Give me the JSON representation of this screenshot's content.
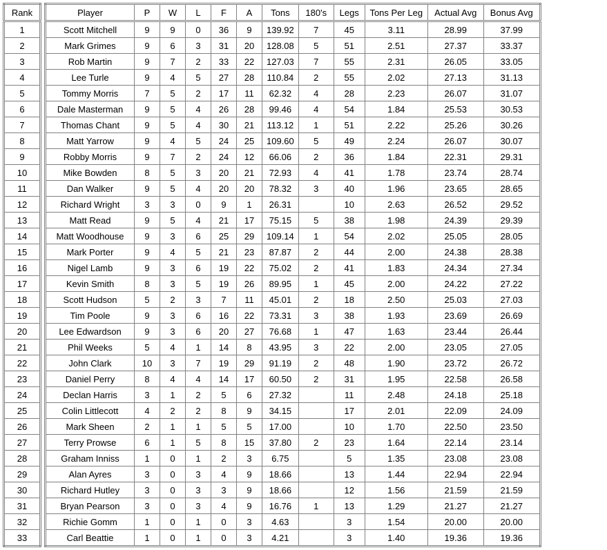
{
  "rank_header": "Rank",
  "headers": [
    "Player",
    "P",
    "W",
    "L",
    "F",
    "A",
    "Tons",
    "180's",
    "Legs",
    "Tons Per Leg",
    "Actual Avg",
    "Bonus Avg"
  ],
  "col_classes": [
    "player-col",
    "small-col",
    "small-col",
    "small-col",
    "small-col",
    "small-col",
    "med-col",
    "med-col",
    "legs-col",
    "tpl-col",
    "avg-col",
    "avg-col"
  ],
  "rows": [
    {
      "rank": "1",
      "cells": [
        "Scott Mitchell",
        "9",
        "9",
        "0",
        "36",
        "9",
        "139.92",
        "7",
        "45",
        "3.11",
        "28.99",
        "37.99"
      ]
    },
    {
      "rank": "2",
      "cells": [
        "Mark Grimes",
        "9",
        "6",
        "3",
        "31",
        "20",
        "128.08",
        "5",
        "51",
        "2.51",
        "27.37",
        "33.37"
      ]
    },
    {
      "rank": "3",
      "cells": [
        "Rob Martin",
        "9",
        "7",
        "2",
        "33",
        "22",
        "127.03",
        "7",
        "55",
        "2.31",
        "26.05",
        "33.05"
      ]
    },
    {
      "rank": "4",
      "cells": [
        "Lee Turle",
        "9",
        "4",
        "5",
        "27",
        "28",
        "110.84",
        "2",
        "55",
        "2.02",
        "27.13",
        "31.13"
      ]
    },
    {
      "rank": "5",
      "cells": [
        "Tommy Morris",
        "7",
        "5",
        "2",
        "17",
        "11",
        "62.32",
        "4",
        "28",
        "2.23",
        "26.07",
        "31.07"
      ]
    },
    {
      "rank": "6",
      "cells": [
        "Dale Masterman",
        "9",
        "5",
        "4",
        "26",
        "28",
        "99.46",
        "4",
        "54",
        "1.84",
        "25.53",
        "30.53"
      ]
    },
    {
      "rank": "7",
      "cells": [
        "Thomas Chant",
        "9",
        "5",
        "4",
        "30",
        "21",
        "113.12",
        "1",
        "51",
        "2.22",
        "25.26",
        "30.26"
      ]
    },
    {
      "rank": "8",
      "cells": [
        "Matt Yarrow",
        "9",
        "4",
        "5",
        "24",
        "25",
        "109.60",
        "5",
        "49",
        "2.24",
        "26.07",
        "30.07"
      ]
    },
    {
      "rank": "9",
      "cells": [
        "Robby Morris",
        "9",
        "7",
        "2",
        "24",
        "12",
        "66.06",
        "2",
        "36",
        "1.84",
        "22.31",
        "29.31"
      ]
    },
    {
      "rank": "10",
      "cells": [
        "Mike Bowden",
        "8",
        "5",
        "3",
        "20",
        "21",
        "72.93",
        "4",
        "41",
        "1.78",
        "23.74",
        "28.74"
      ]
    },
    {
      "rank": "11",
      "cells": [
        "Dan Walker",
        "9",
        "5",
        "4",
        "20",
        "20",
        "78.32",
        "3",
        "40",
        "1.96",
        "23.65",
        "28.65"
      ]
    },
    {
      "rank": "12",
      "cells": [
        "Richard Wright",
        "3",
        "3",
        "0",
        "9",
        "1",
        "26.31",
        "",
        "10",
        "2.63",
        "26.52",
        "29.52"
      ]
    },
    {
      "rank": "13",
      "cells": [
        "Matt Read",
        "9",
        "5",
        "4",
        "21",
        "17",
        "75.15",
        "5",
        "38",
        "1.98",
        "24.39",
        "29.39"
      ]
    },
    {
      "rank": "14",
      "cells": [
        "Matt Woodhouse",
        "9",
        "3",
        "6",
        "25",
        "29",
        "109.14",
        "1",
        "54",
        "2.02",
        "25.05",
        "28.05"
      ]
    },
    {
      "rank": "15",
      "cells": [
        "Mark Porter",
        "9",
        "4",
        "5",
        "21",
        "23",
        "87.87",
        "2",
        "44",
        "2.00",
        "24.38",
        "28.38"
      ]
    },
    {
      "rank": "16",
      "cells": [
        "Nigel Lamb",
        "9",
        "3",
        "6",
        "19",
        "22",
        "75.02",
        "2",
        "41",
        "1.83",
        "24.34",
        "27.34"
      ]
    },
    {
      "rank": "17",
      "cells": [
        "Kevin Smith",
        "8",
        "3",
        "5",
        "19",
        "26",
        "89.95",
        "1",
        "45",
        "2.00",
        "24.22",
        "27.22"
      ]
    },
    {
      "rank": "18",
      "cells": [
        "Scott Hudson",
        "5",
        "2",
        "3",
        "7",
        "11",
        "45.01",
        "2",
        "18",
        "2.50",
        "25.03",
        "27.03"
      ]
    },
    {
      "rank": "19",
      "cells": [
        "Tim Poole",
        "9",
        "3",
        "6",
        "16",
        "22",
        "73.31",
        "3",
        "38",
        "1.93",
        "23.69",
        "26.69"
      ]
    },
    {
      "rank": "20",
      "cells": [
        "Lee Edwardson",
        "9",
        "3",
        "6",
        "20",
        "27",
        "76.68",
        "1",
        "47",
        "1.63",
        "23.44",
        "26.44"
      ]
    },
    {
      "rank": "21",
      "cells": [
        "Phil Weeks",
        "5",
        "4",
        "1",
        "14",
        "8",
        "43.95",
        "3",
        "22",
        "2.00",
        "23.05",
        "27.05"
      ]
    },
    {
      "rank": "22",
      "cells": [
        "John Clark",
        "10",
        "3",
        "7",
        "19",
        "29",
        "91.19",
        "2",
        "48",
        "1.90",
        "23.72",
        "26.72"
      ]
    },
    {
      "rank": "23",
      "cells": [
        "Daniel Perry",
        "8",
        "4",
        "4",
        "14",
        "17",
        "60.50",
        "2",
        "31",
        "1.95",
        "22.58",
        "26.58"
      ]
    },
    {
      "rank": "24",
      "cells": [
        "Declan Harris",
        "3",
        "1",
        "2",
        "5",
        "6",
        "27.32",
        "",
        "11",
        "2.48",
        "24.18",
        "25.18"
      ]
    },
    {
      "rank": "25",
      "cells": [
        "Colin Littlecott",
        "4",
        "2",
        "2",
        "8",
        "9",
        "34.15",
        "",
        "17",
        "2.01",
        "22.09",
        "24.09"
      ]
    },
    {
      "rank": "26",
      "cells": [
        "Mark Sheen",
        "2",
        "1",
        "1",
        "5",
        "5",
        "17.00",
        "",
        "10",
        "1.70",
        "22.50",
        "23.50"
      ]
    },
    {
      "rank": "27",
      "cells": [
        "Terry Prowse",
        "6",
        "1",
        "5",
        "8",
        "15",
        "37.80",
        "2",
        "23",
        "1.64",
        "22.14",
        "23.14"
      ]
    },
    {
      "rank": "28",
      "cells": [
        "Graham Inniss",
        "1",
        "0",
        "1",
        "2",
        "3",
        "6.75",
        "",
        "5",
        "1.35",
        "23.08",
        "23.08"
      ]
    },
    {
      "rank": "29",
      "cells": [
        "Alan Ayres",
        "3",
        "0",
        "3",
        "4",
        "9",
        "18.66",
        "",
        "13",
        "1.44",
        "22.94",
        "22.94"
      ]
    },
    {
      "rank": "30",
      "cells": [
        "Richard Hutley",
        "3",
        "0",
        "3",
        "3",
        "9",
        "18.66",
        "",
        "12",
        "1.56",
        "21.59",
        "21.59"
      ]
    },
    {
      "rank": "31",
      "cells": [
        "Bryan Pearson",
        "3",
        "0",
        "3",
        "4",
        "9",
        "16.76",
        "1",
        "13",
        "1.29",
        "21.27",
        "21.27"
      ]
    },
    {
      "rank": "32",
      "cells": [
        "Richie Gomm",
        "1",
        "0",
        "1",
        "0",
        "3",
        "4.63",
        "",
        "3",
        "1.54",
        "20.00",
        "20.00"
      ]
    },
    {
      "rank": "33",
      "cells": [
        "Carl Beattie",
        "1",
        "0",
        "1",
        "0",
        "3",
        "4.21",
        "",
        "3",
        "1.40",
        "19.36",
        "19.36"
      ]
    }
  ]
}
